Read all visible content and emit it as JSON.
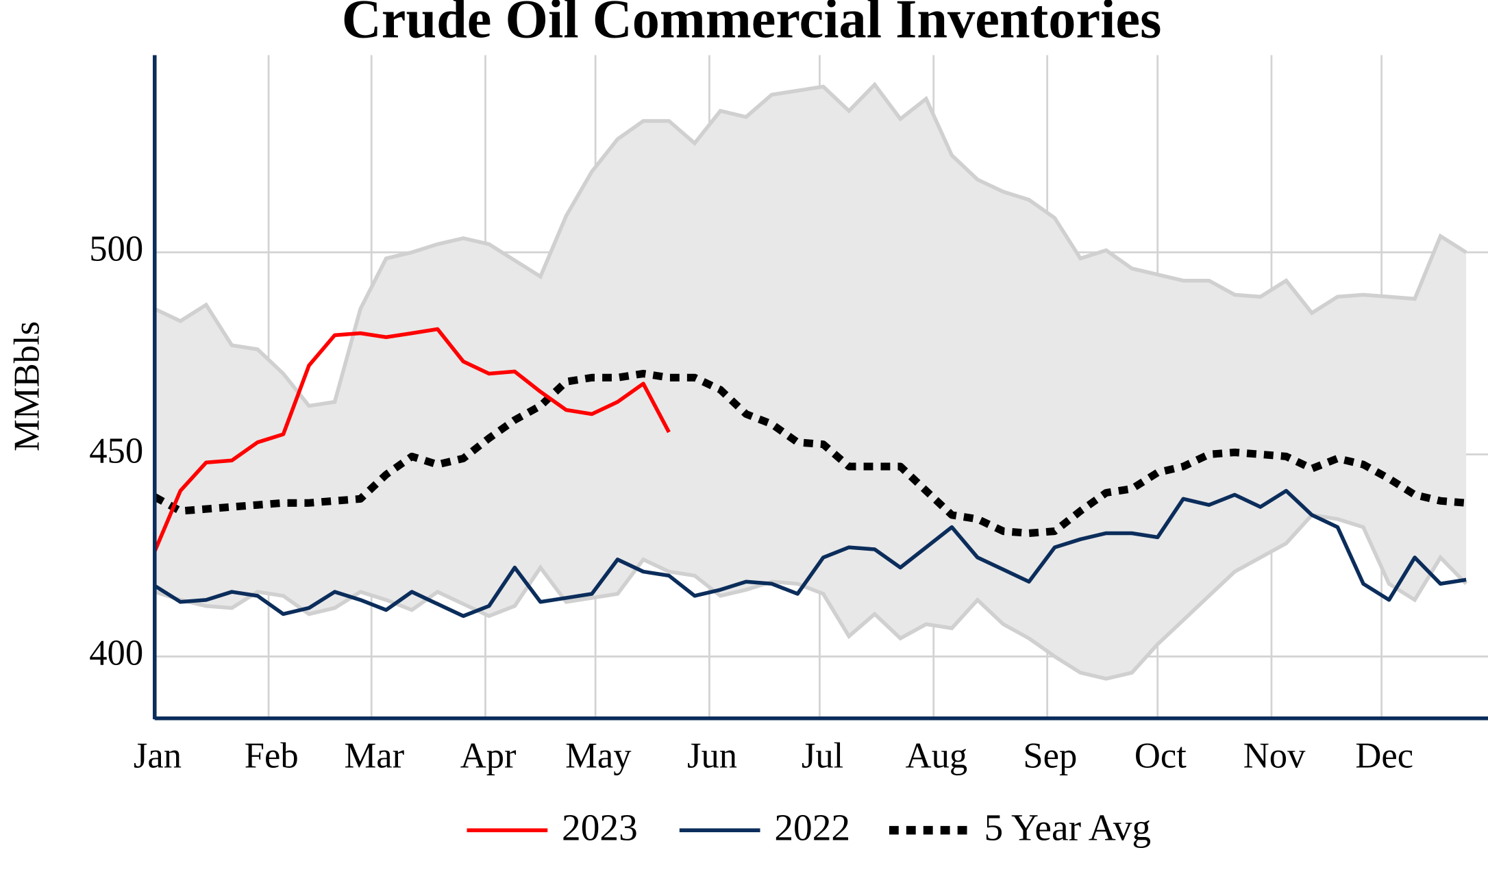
{
  "chart_data": {
    "type": "line",
    "title": "Crude Oil Commercial Inventories",
    "y_label": "MMBbls",
    "xlim": [
      0,
      51.85
    ],
    "ylim": [
      384.7,
      548.8
    ],
    "yticks": [
      400,
      450,
      500
    ],
    "xticks": [
      {
        "value": 0,
        "label": "Jan"
      },
      {
        "value": 4.43,
        "label": "Feb"
      },
      {
        "value": 8.43,
        "label": "Mar"
      },
      {
        "value": 12.86,
        "label": "Apr"
      },
      {
        "value": 17.14,
        "label": "May"
      },
      {
        "value": 21.57,
        "label": "Jun"
      },
      {
        "value": 25.86,
        "label": "Jul"
      },
      {
        "value": 30.29,
        "label": "Aug"
      },
      {
        "value": 34.71,
        "label": "Sep"
      },
      {
        "value": 39,
        "label": "Oct"
      },
      {
        "value": 43.43,
        "label": "Nov"
      },
      {
        "value": 47.71,
        "label": "Dec"
      }
    ],
    "grid": true,
    "legend": "bottom",
    "range": {
      "color": "#e8e8e8",
      "line_color": "#d0d0d0",
      "upper": [
        486,
        483,
        487,
        477,
        476,
        470,
        462,
        463,
        486,
        498.5,
        500,
        502,
        503.5,
        502,
        498,
        494,
        509,
        520,
        528,
        532.5,
        532.5,
        527,
        535,
        533.5,
        539,
        540,
        541,
        535,
        541.5,
        533,
        538,
        524,
        518,
        515,
        513,
        508.5,
        498.5,
        500.5,
        496,
        494.5,
        493,
        493,
        489.5,
        489,
        493,
        485,
        489,
        489.5,
        489,
        488.5,
        504,
        500
      ],
      "lower": [
        416,
        414,
        412.5,
        412,
        416,
        415,
        410.5,
        412,
        416,
        414,
        411.5,
        416,
        413,
        410,
        412.5,
        422,
        413.5,
        414.5,
        415.5,
        424,
        421,
        420,
        415,
        416.5,
        418.5,
        418,
        415.5,
        405,
        410.5,
        404.5,
        408,
        407,
        414,
        408,
        404.5,
        400,
        396,
        394.5,
        396,
        403,
        409,
        415,
        421,
        424.5,
        428,
        435,
        434,
        432,
        418,
        414,
        424.5,
        418
      ]
    },
    "series": [
      {
        "name": "2023",
        "color": "#ff0000",
        "dash": false,
        "values": [
          426,
          441,
          448,
          448.5,
          453,
          455,
          472,
          479.5,
          480,
          479,
          480,
          481,
          473,
          470,
          470.5,
          465.5,
          461,
          460,
          463,
          467.5,
          455.5
        ]
      },
      {
        "name": "2022",
        "color": "#0b2d5b",
        "dash": false,
        "values": [
          417.5,
          413.5,
          414,
          416,
          415,
          410.5,
          412,
          416,
          414,
          411.5,
          416,
          413,
          410,
          412.5,
          422,
          413.5,
          414.5,
          415.5,
          424,
          421,
          420,
          415,
          416.5,
          418.5,
          418,
          415.5,
          424.5,
          427,
          426.5,
          422,
          427,
          432,
          424.5,
          421.5,
          418.5,
          427,
          429,
          430.5,
          430.5,
          429.5,
          439,
          437.5,
          440,
          437,
          441,
          435,
          432,
          418,
          414,
          424.5,
          418,
          419
        ]
      },
      {
        "name": "5 Year Avg",
        "color": "#000000",
        "dash": true,
        "values": [
          439.5,
          436,
          436.5,
          437,
          437.5,
          438,
          438,
          438.5,
          439,
          445,
          449.5,
          447.5,
          449,
          454,
          458.5,
          462,
          468,
          469,
          469,
          470,
          469,
          469,
          466,
          460,
          457.5,
          453,
          452.5,
          447,
          447,
          447,
          441,
          435,
          434,
          431,
          430.5,
          431,
          436,
          440.5,
          441.5,
          445.5,
          447,
          450,
          450.5,
          450,
          449.5,
          446.5,
          449,
          447.5,
          444,
          440,
          438.5,
          438
        ]
      }
    ]
  }
}
